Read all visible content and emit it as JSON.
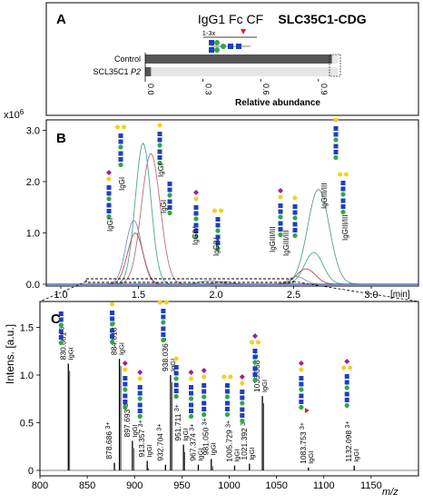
{
  "figure": {
    "condition_label": "SLC35C1-CDG"
  },
  "panel_a": {
    "letter": "A",
    "glycan_title": "IgG1 Fc CF",
    "site_label": "1-3x",
    "rows": [
      {
        "name": "Control",
        "value": 0.97
      },
      {
        "name": "SCL35C1 ",
        "name_italic": "P2",
        "value": 0.03
      }
    ],
    "x_ticks": [
      "0.0",
      "0.3",
      "0.6",
      "0.9"
    ],
    "x_label": "Relative abundance"
  },
  "panel_b": {
    "letter": "B",
    "y_unit": "x10",
    "y_unit_exp": "6",
    "y_label": "Intens. [a.u.]",
    "y_ticks": [
      "0.0",
      "1.0",
      "2.0",
      "3.0"
    ],
    "x_ticks": [
      "1.0",
      "1.5",
      "2.0",
      "2.5",
      "3.0"
    ],
    "x_unit": "[min]",
    "peak_labels": [
      "IgGI",
      "IgGI",
      "IgGI",
      "IgGI",
      "IgGIV",
      "IgGIV",
      "IgGIII/III",
      "IgGIII/III",
      "IgGIII/III",
      "IgGIII/III"
    ],
    "trace_colors": [
      "#4aa88c",
      "#c06a7a",
      "#7a8fc0",
      "#b05060",
      "#5c9f7e"
    ]
  },
  "panel_c": {
    "letter": "C",
    "y_ticks": [
      "0",
      "0.5",
      "1.0",
      "1.5"
    ],
    "x_ticks": [
      "800",
      "850",
      "900",
      "950",
      "1000",
      "1050",
      "1100",
      "1150"
    ],
    "x_label": "m/z",
    "peaks": [
      {
        "mz": 830.001,
        "label": "830.001",
        "charge": "3+",
        "sub": "IgGI",
        "rel": 1.12
      },
      {
        "mz": 878.686,
        "label": "878.686",
        "charge": "3+",
        "sub": "",
        "rel": 0.08
      },
      {
        "mz": 884.018,
        "label": "884.018",
        "charge": "3+",
        "sub": "IgGI",
        "rel": 1.17
      },
      {
        "mz": 897.693,
        "label": "897.693",
        "charge": "3+",
        "sub": "IgGI",
        "rel": 0.31
      },
      {
        "mz": 913.357,
        "label": "913.357",
        "charge": "3+",
        "sub": "IgGI",
        "rel": 0.1
      },
      {
        "mz": 932.704,
        "label": "932.704",
        "charge": "3+",
        "sub": "",
        "rel": 0.06
      },
      {
        "mz": 938.036,
        "label": "938.036",
        "charge": "3+",
        "sub": "IgGI",
        "rel": 1.0
      },
      {
        "mz": 951.711,
        "label": "951.711",
        "charge": "3+",
        "sub": "IgGI",
        "rel": 0.27
      },
      {
        "mz": 967.374,
        "label": "967.374",
        "charge": "3+",
        "sub": "IgGI",
        "rel": 0.06
      },
      {
        "mz": 981.05,
        "label": "981.050",
        "charge": "3+",
        "sub": "IgGI",
        "rel": 0.12
      },
      {
        "mz": 1005.729,
        "label": "1005.729",
        "charge": "3+",
        "sub": "IgGI",
        "rel": 0.05
      },
      {
        "mz": 1021.392,
        "label": "1021.392",
        "charge": "3+",
        "sub": "IgGI",
        "rel": 0.07
      },
      {
        "mz": 1035.068,
        "label": "1035.068",
        "charge": "3+",
        "sub": "IgGI",
        "rel": 0.78
      },
      {
        "mz": 1083.753,
        "label": "1083.753",
        "charge": "3+",
        "sub": "IgGI",
        "rel": 0.03
      },
      {
        "mz": 1132.098,
        "label": "1132.098",
        "charge": "3+",
        "sub": "IgGI",
        "rel": 0.05
      }
    ],
    "colors": {
      "spectrum": "#000000"
    }
  },
  "glycan_colors": {
    "glcnac": "#1f3fbf",
    "mannose": "#2fa84a",
    "galactose": "#f2d21a",
    "sialic": "#a0208f",
    "fucose": "#e02020"
  }
}
